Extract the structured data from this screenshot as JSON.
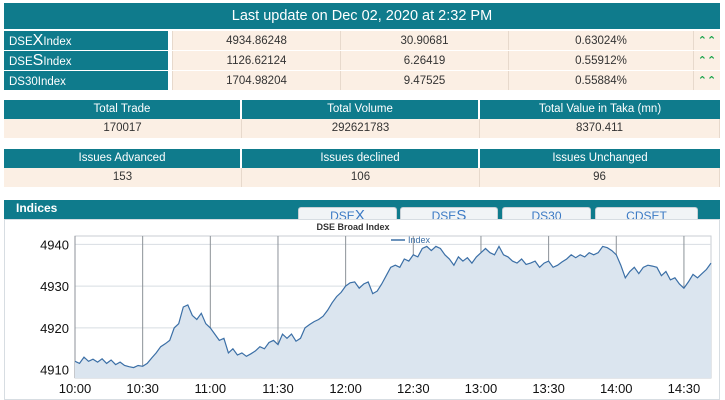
{
  "header": {
    "last_update": "Last update on Dec 02, 2020 at 2:32 PM"
  },
  "indices": [
    {
      "name_prefix": "DSE",
      "name_big": "X",
      "name_suffix": " Index",
      "value": "4934.86248",
      "change": "30.90681",
      "percent": "0.63024%",
      "arrow": "⌃⌃"
    },
    {
      "name_prefix": "DSE",
      "name_big": "S",
      "name_suffix": " Index",
      "value": "1126.62124",
      "change": "6.26419",
      "percent": "0.55912%",
      "arrow": "⌃⌃"
    },
    {
      "name_prefix": "DS30",
      "name_big": "",
      "name_suffix": " Index",
      "value": "1704.98204",
      "change": "9.47525",
      "percent": "0.55884%",
      "arrow": "⌃⌃"
    }
  ],
  "trade_stats": {
    "headers": [
      "Total Trade",
      "Total Volume",
      "Total Value in Taka (mn)"
    ],
    "values": [
      "170017",
      "292621783",
      "8370.411"
    ]
  },
  "issue_stats": {
    "headers": [
      "Issues Advanced",
      "Issues declined",
      "Issues Unchanged"
    ],
    "values": [
      "153",
      "106",
      "96"
    ]
  },
  "indices_section": {
    "title": "Indices"
  },
  "tabs": [
    {
      "prefix": "DSE",
      "big": "X"
    },
    {
      "prefix": "DSE",
      "big": "S"
    },
    {
      "prefix": "DS30",
      "big": ""
    },
    {
      "prefix": "CDSET",
      "big": ""
    }
  ],
  "accent_color": "#0f7b8c",
  "chart_data": {
    "type": "area",
    "title": "DSE Broad Index",
    "legend": "Index",
    "legend_position": "top-center",
    "grid": true,
    "y_ticks": [
      "4910",
      "4920",
      "4930",
      "4940"
    ],
    "x_ticks": [
      "10:00",
      "10:30",
      "11:00",
      "11:30",
      "12:00",
      "12:30",
      "13:00",
      "13:30",
      "14:00",
      "14:30"
    ],
    "ylim": [
      4908,
      4942
    ],
    "xlim": [
      0,
      282
    ],
    "series": [
      {
        "name": "Index",
        "x": [
          0,
          2,
          4,
          6,
          8,
          10,
          12,
          14,
          16,
          18,
          20,
          22,
          24,
          26,
          28,
          30,
          32,
          34,
          36,
          38,
          40,
          42,
          44,
          46,
          48,
          50,
          52,
          54,
          56,
          58,
          60,
          62,
          64,
          66,
          68,
          70,
          72,
          74,
          76,
          78,
          80,
          82,
          84,
          86,
          88,
          90,
          92,
          94,
          96,
          98,
          100,
          102,
          104,
          106,
          108,
          110,
          112,
          114,
          116,
          118,
          120,
          122,
          124,
          126,
          128,
          130,
          132,
          134,
          136,
          138,
          140,
          142,
          144,
          146,
          148,
          150,
          152,
          154,
          156,
          158,
          160,
          162,
          164,
          166,
          168,
          170,
          172,
          174,
          176,
          178,
          180,
          182,
          184,
          186,
          188,
          190,
          192,
          194,
          196,
          198,
          200,
          202,
          204,
          206,
          208,
          210,
          212,
          214,
          216,
          218,
          220,
          222,
          224,
          226,
          228,
          230,
          232,
          234,
          236,
          238,
          240,
          242,
          244,
          246,
          248,
          250,
          252,
          254,
          256,
          258,
          260,
          262,
          264,
          266,
          268,
          270,
          272,
          274,
          276,
          278,
          280,
          282
        ],
        "y": [
          4912,
          4911.5,
          4913,
          4912,
          4912.5,
          4911.8,
          4912.6,
          4911.5,
          4912.3,
          4911.2,
          4911.8,
          4911,
          4910.7,
          4910.5,
          4911,
          4910.8,
          4911.5,
          4912.8,
          4914,
          4915.5,
          4916.2,
          4917,
          4920,
          4921,
          4925,
          4925.5,
          4923,
          4922,
          4923.5,
          4921,
          4920,
          4918.5,
          4917,
          4917.5,
          4914,
          4915,
          4913.5,
          4914,
          4913.2,
          4913.8,
          4914.5,
          4915.5,
          4915,
          4916.5,
          4917,
          4916,
          4918.5,
          4917.5,
          4918.5,
          4916.8,
          4917.5,
          4920,
          4920.8,
          4921.5,
          4922,
          4922.8,
          4924.2,
          4926,
          4927.5,
          4928.5,
          4930,
          4930.8,
          4931,
          4929.5,
          4930.5,
          4931,
          4928.2,
          4928.8,
          4930.5,
          4932.5,
          4934.5,
          4935,
          4934.5,
          4936.5,
          4936,
          4937.5,
          4937,
          4939,
          4939.5,
          4938.5,
          4939.5,
          4939,
          4937.5,
          4936.5,
          4935,
          4937,
          4936,
          4936.8,
          4935.5,
          4937,
          4938,
          4939,
          4938,
          4937.5,
          4939.5,
          4937.5,
          4937,
          4936,
          4935.5,
          4936.5,
          4935.2,
          4935.5,
          4936,
          4934.5,
          4935.5,
          4936,
          4934.5,
          4935,
          4935.8,
          4936.5,
          4937.5,
          4936.8,
          4937.5,
          4937,
          4938,
          4937.5,
          4938,
          4939.5,
          4939.2,
          4938.5,
          4937.5,
          4935,
          4932,
          4933.5,
          4934.5,
          4933,
          4934.5,
          4935,
          4934.8,
          4934.5,
          4932.5,
          4933.5,
          4931.5,
          4932,
          4930.5,
          4929.5,
          4931,
          4932.8,
          4932,
          4933,
          4934,
          4935.5
        ]
      }
    ]
  }
}
